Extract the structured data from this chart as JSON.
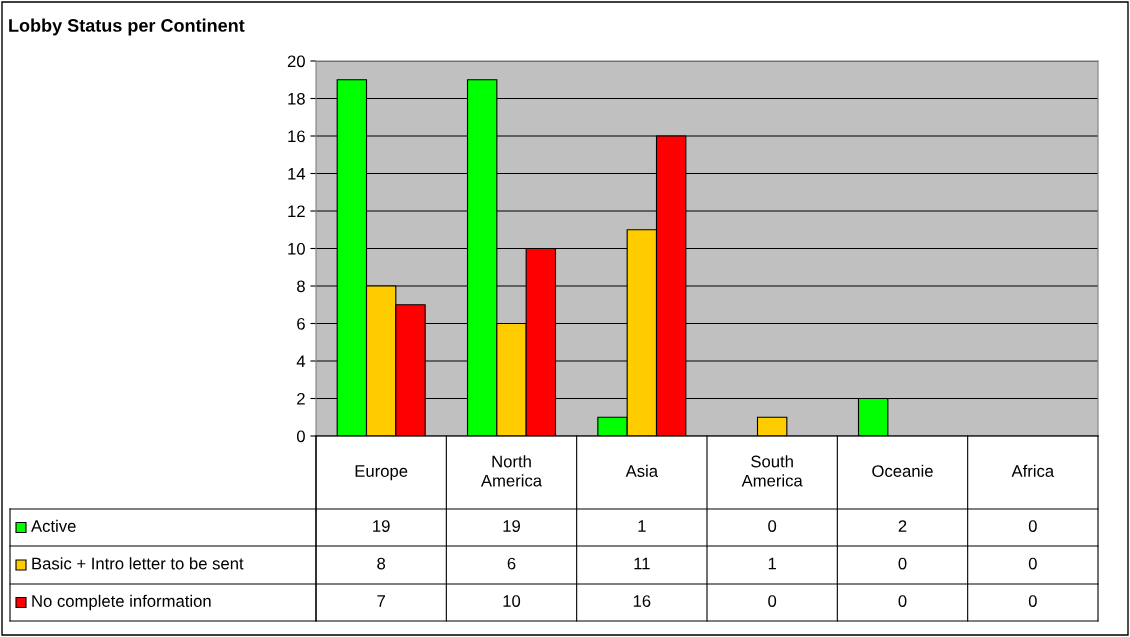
{
  "chart_data": {
    "type": "bar",
    "title": "Lobby Status per Continent",
    "categories": [
      "Europe",
      "North America",
      "Asia",
      "South America",
      "Oceanie",
      "Africa"
    ],
    "series": [
      {
        "name": "Active",
        "color": "#00ff00",
        "values": [
          19,
          19,
          1,
          0,
          2,
          0
        ]
      },
      {
        "name": "Basic + Intro letter to be sent",
        "color": "#ffcc00",
        "values": [
          8,
          6,
          11,
          1,
          0,
          0
        ]
      },
      {
        "name": "No complete information",
        "color": "#ff0000",
        "values": [
          7,
          10,
          16,
          0,
          0,
          0
        ]
      }
    ],
    "ylim": [
      0,
      20
    ],
    "yticks": [
      0,
      2,
      4,
      6,
      8,
      10,
      12,
      14,
      16,
      18,
      20
    ],
    "grid": "y",
    "legend": "bottom",
    "data_labels": true
  }
}
